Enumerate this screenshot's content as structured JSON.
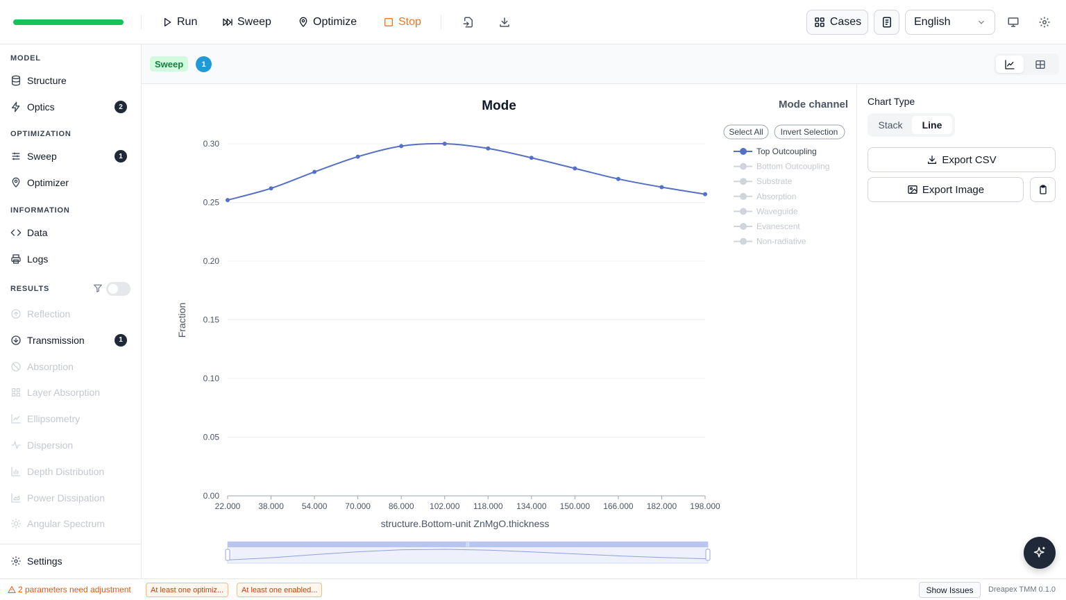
{
  "toolbar": {
    "progress": 1.0,
    "run_label": "Run",
    "sweep_label": "Sweep",
    "optimize_label": "Optimize",
    "stop_label": "Stop",
    "cases_label": "Cases",
    "language": "English"
  },
  "sidebar": {
    "model_title": "MODEL",
    "structure_label": "Structure",
    "optics_label": "Optics",
    "optics_badge": "2",
    "optimization_title": "OPTIMIZATION",
    "sweep_label": "Sweep",
    "sweep_badge": "1",
    "optimizer_label": "Optimizer",
    "information_title": "INFORMATION",
    "data_label": "Data",
    "logs_label": "Logs",
    "results_title": "RESULTS",
    "results": [
      {
        "label": "Reflection",
        "icon": "arrow-up-circle-icon",
        "enabled": false
      },
      {
        "label": "Transmission",
        "icon": "arrow-down-circle-icon",
        "enabled": true,
        "badge": "1"
      },
      {
        "label": "Absorption",
        "icon": "ban-icon",
        "enabled": false
      },
      {
        "label": "Layer Absorption",
        "icon": "grid-icon",
        "enabled": false
      },
      {
        "label": "Ellipsometry",
        "icon": "line-chart-icon",
        "enabled": false
      },
      {
        "label": "Dispersion",
        "icon": "wave-icon",
        "enabled": false
      },
      {
        "label": "Depth Distribution",
        "icon": "bar-chart-icon",
        "enabled": false
      },
      {
        "label": "Power Dissipation",
        "icon": "area-chart-icon",
        "enabled": false
      },
      {
        "label": "Angular Spectrum",
        "icon": "sun-icon",
        "enabled": false
      }
    ],
    "settings_label": "Settings"
  },
  "subheader": {
    "tag": "Sweep",
    "count": "1"
  },
  "chart_data": {
    "type": "line",
    "title": "Mode",
    "xlabel": "structure.Bottom-unit ZnMgO.thickness",
    "ylabel": "Fraction",
    "ylim": [
      0,
      0.3
    ],
    "yticks": [
      "0.00",
      "0.05",
      "0.10",
      "0.15",
      "0.20",
      "0.25",
      "0.30"
    ],
    "xticks": [
      "22.000",
      "38.000",
      "54.000",
      "70.000",
      "86.000",
      "102.000",
      "118.000",
      "134.000",
      "150.000",
      "166.000",
      "182.000",
      "198.000"
    ],
    "x": [
      22,
      38,
      54,
      70,
      86,
      102,
      118,
      134,
      150,
      166,
      182,
      198
    ],
    "series": [
      {
        "name": "Top Outcoupling",
        "active": true,
        "values": [
          0.252,
          0.262,
          0.276,
          0.289,
          0.298,
          0.3,
          0.296,
          0.288,
          0.279,
          0.27,
          0.263,
          0.257
        ]
      }
    ],
    "legend_title": "Mode channel",
    "legend_select_all": "Select All",
    "legend_invert": "Invert Selection",
    "legend_entries": [
      {
        "name": "Top Outcoupling",
        "active": true
      },
      {
        "name": "Bottom Outcoupling",
        "active": false
      },
      {
        "name": "Substrate",
        "active": false
      },
      {
        "name": "Absorption",
        "active": false
      },
      {
        "name": "Waveguide",
        "active": false
      },
      {
        "name": "Evanescent",
        "active": false
      },
      {
        "name": "Non-radiative",
        "active": false
      }
    ],
    "legend_placement": "right",
    "line_color": "#5470c6"
  },
  "right_panel": {
    "chart_type_label": "Chart Type",
    "stack_label": "Stack",
    "line_label": "Line",
    "export_csv_label": "Export CSV",
    "export_image_label": "Export Image"
  },
  "status": {
    "warning": "2 parameters need adjustment",
    "pill1": "At least one optimiz...",
    "pill2": "At least one enabled...",
    "show_issues": "Show Issues",
    "version": "Dreapex TMM 0.1.0"
  }
}
